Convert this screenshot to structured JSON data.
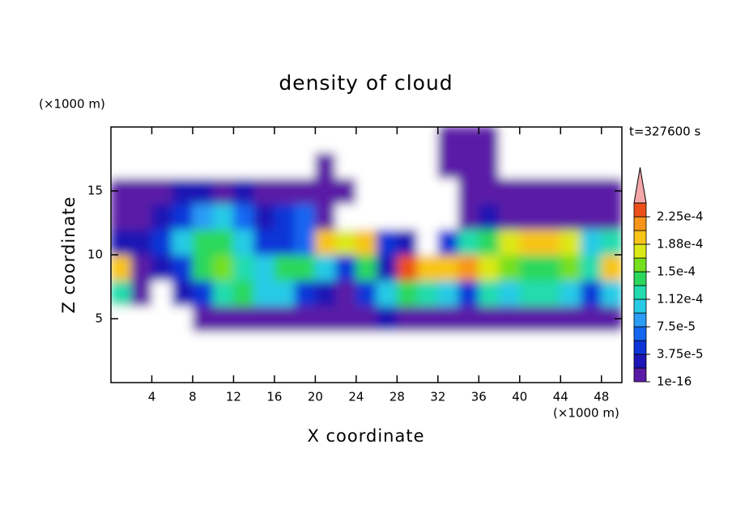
{
  "chart_data": {
    "type": "contour",
    "title": "density of cloud",
    "x_label": "X coordinate",
    "y_label": "Z coordinate",
    "x_unit": "(×1000 m)",
    "y_unit": "(×1000 m)",
    "annotation": "t=327600 s",
    "xlim": [
      0,
      50
    ],
    "ylim": [
      0,
      20
    ],
    "xticks": [
      4,
      8,
      12,
      16,
      20,
      24,
      28,
      32,
      36,
      40,
      44,
      48
    ],
    "yticks": [
      5,
      10,
      15
    ],
    "x": [
      1,
      3,
      5,
      7,
      9,
      11,
      13,
      15,
      17,
      19,
      21,
      23,
      25,
      27,
      29,
      31,
      33,
      35,
      37,
      39,
      41,
      43,
      45,
      47,
      49
    ],
    "z": [
      1,
      3,
      5,
      7,
      9,
      11,
      13,
      15,
      17,
      19
    ],
    "values": [
      [
        0,
        0,
        0,
        0,
        0,
        0,
        0,
        0,
        0,
        0,
        0,
        0,
        0,
        0,
        0,
        0,
        0,
        0,
        0,
        0,
        0,
        0,
        0,
        0,
        0
      ],
      [
        0,
        0,
        0,
        0,
        0,
        0,
        0,
        0,
        0,
        0,
        0,
        0,
        0,
        0,
        0,
        0,
        0,
        0,
        0,
        0,
        0,
        0,
        0,
        0,
        0
      ],
      [
        0,
        0,
        0,
        0,
        1e-06,
        1e-06,
        1e-06,
        1e-06,
        1e-06,
        1e-06,
        1e-06,
        1e-06,
        1e-06,
        2.5e-05,
        1e-06,
        1e-06,
        1e-06,
        1e-06,
        1e-06,
        1e-06,
        1e-06,
        1e-06,
        1e-06,
        1e-06,
        1e-06
      ],
      [
        0.00012,
        1e-06,
        0,
        2.5e-05,
        4.5e-05,
        0.00012,
        0.00014,
        0.0001,
        0.0001,
        4.5e-05,
        2.5e-05,
        1e-06,
        4.5e-05,
        0.0001,
        0.00014,
        0.00012,
        0.0001,
        4.5e-05,
        0.00012,
        0.0001,
        0.00012,
        0.00012,
        0.0001,
        4.5e-05,
        0.0001
      ],
      [
        0.000195,
        1e-06,
        2.5e-05,
        4.5e-05,
        0.00014,
        0.00016,
        0.00012,
        0.0001,
        0.00014,
        0.00014,
        0.0001,
        4.5e-05,
        0.00014,
        2.5e-05,
        0.000235,
        0.000195,
        0.000195,
        0.000215,
        0.000175,
        0.00016,
        0.00014,
        0.00014,
        0.00016,
        0.00012,
        0.000195
      ],
      [
        2.5e-05,
        2.5e-05,
        4.5e-05,
        0.0001,
        0.00014,
        0.00014,
        0.0001,
        4.5e-05,
        4.5e-05,
        6.5e-05,
        0.000195,
        0.000175,
        0.000195,
        4.5e-05,
        2.5e-05,
        0,
        4.5e-05,
        0.00012,
        0.00014,
        0.000175,
        0.000195,
        0.000195,
        0.000175,
        0.0001,
        0.00012
      ],
      [
        1e-06,
        1e-06,
        2.5e-05,
        4.5e-05,
        8.5e-05,
        0.0001,
        6.5e-05,
        2.5e-05,
        4.5e-05,
        6.5e-05,
        1e-06,
        0,
        0,
        0,
        0,
        0,
        0,
        1e-06,
        2.5e-05,
        1e-06,
        1e-06,
        1e-06,
        1e-06,
        1e-06,
        1e-06
      ],
      [
        1e-06,
        1e-06,
        1e-06,
        2.5e-05,
        2.5e-05,
        1e-06,
        2.5e-05,
        1e-06,
        1e-06,
        1e-06,
        1e-06,
        1e-06,
        0,
        0,
        0,
        0,
        0,
        1e-06,
        1e-06,
        1e-06,
        1e-06,
        1e-06,
        1e-06,
        1e-06,
        1e-06
      ],
      [
        0,
        0,
        0,
        0,
        0,
        0,
        0,
        0,
        0,
        0,
        1e-06,
        0,
        0,
        0,
        0,
        0,
        1e-06,
        1e-06,
        1e-06,
        0,
        0,
        0,
        0,
        0,
        0
      ],
      [
        0,
        0,
        0,
        0,
        0,
        0,
        0,
        0,
        0,
        0,
        0,
        0,
        0,
        0,
        0,
        0,
        1e-06,
        1e-06,
        1e-06,
        0,
        0,
        0,
        0,
        0,
        0
      ]
    ],
    "levels": [
      1e-16,
      1.875e-05,
      3.75e-05,
      5.625e-05,
      7.5e-05,
      9.375e-05,
      0.0001125,
      0.00013125,
      0.00015,
      0.00016875,
      0.0001875,
      0.00020625,
      0.000225,
      0.00024375
    ],
    "colors": [
      "#5a1aa6",
      "#1c14b4",
      "#0c34d8",
      "#1466f2",
      "#2a9cf6",
      "#26cbe6",
      "#22dcae",
      "#2cd85c",
      "#74e01e",
      "#dce818",
      "#f8c418",
      "#f89418",
      "#ec5018"
    ],
    "extend_color": "#f4a8a8",
    "below_color": "#ffffff",
    "colorbar_ticks": [
      1e-16,
      {
        "value": 3.75e-05,
        "label": "3.75e-5"
      },
      {
        "value": 7.5e-05,
        "label": "7.5e-5"
      },
      {
        "value": 0.0001125,
        "label": "1.12e-4"
      },
      {
        "value": 0.00015,
        "label": "1.5e-4"
      },
      {
        "value": 0.0001875,
        "label": "1.88e-4"
      },
      {
        "value": 0.000225,
        "label": "2.25e-4"
      }
    ]
  }
}
